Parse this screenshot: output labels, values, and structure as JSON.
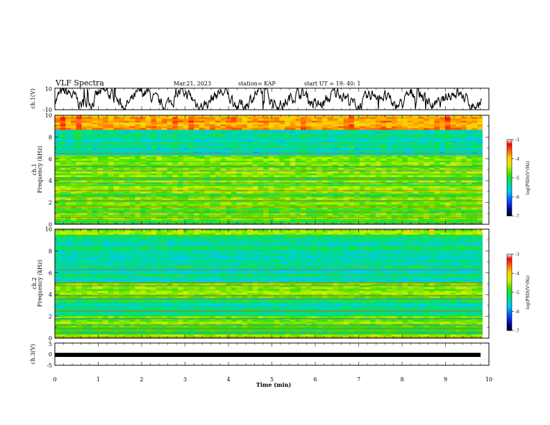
{
  "header": {
    "title": "VLF Spectra",
    "date": "Mar.21, 2023",
    "station": "station= KAP",
    "start": "start  UT =   19: 40: 1"
  },
  "chart_data": [
    {
      "type": "line",
      "name": "ch1-voltage",
      "ylabel": "ch.1(V)",
      "ylim": [
        -10,
        10
      ],
      "yticks": [
        "10",
        "-10"
      ],
      "xlim": [
        0,
        10
      ],
      "note_trace": "noisy waveform roughly between -9 and 9 V"
    },
    {
      "type": "heatmap",
      "name": "ch1-spectrogram",
      "ylabel": "ch.1\nFrequency (kHz)",
      "ylim": [
        0,
        10
      ],
      "yticks": [
        "0",
        "2",
        "4",
        "6",
        "8",
        "10"
      ],
      "xlim": [
        0,
        9.85
      ],
      "colorbar": {
        "label": "log(PSD)(V²/Hz)",
        "range": [
          -7,
          -3
        ],
        "ticks": [
          "-3",
          "-4",
          "-5",
          "-6",
          "-7"
        ]
      }
    },
    {
      "type": "heatmap",
      "name": "ch2-spectrogram",
      "ylabel": "ch.2\nFrequency (kHz)",
      "ylim": [
        0,
        10
      ],
      "yticks": [
        "0",
        "2",
        "4",
        "6",
        "8",
        "10"
      ],
      "xlim": [
        0,
        9.85
      ],
      "colorbar": {
        "label": "log(PSD)(V²/Hz)",
        "range": [
          -7,
          -3
        ],
        "ticks": [
          "-3",
          "-4",
          "-5",
          "-6",
          "-7"
        ]
      }
    },
    {
      "type": "line",
      "name": "ch3-voltage",
      "ylabel": "ch.3(V)",
      "ylim": [
        -5,
        5
      ],
      "yticks": [
        "5",
        "0",
        "-5"
      ],
      "xlim": [
        0,
        10
      ],
      "xlabel": "Time (min)",
      "xticks": [
        "0",
        "1",
        "2",
        "3",
        "4",
        "5",
        "6",
        "7",
        "8",
        "9",
        "10"
      ]
    }
  ],
  "colors": {
    "axis": "#000000",
    "trace": "#000000"
  }
}
